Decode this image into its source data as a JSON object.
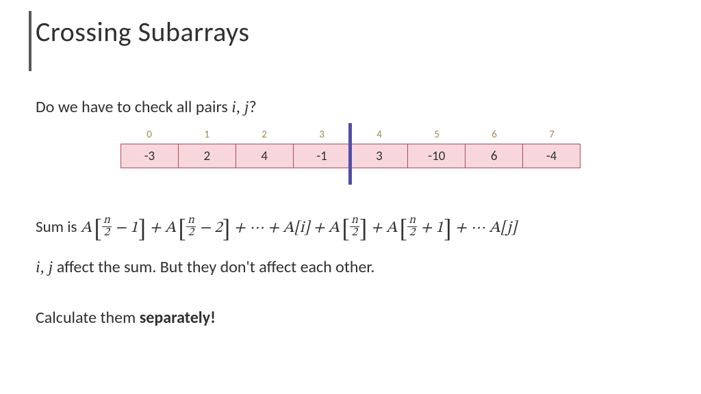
{
  "title": "Crossing Subarrays",
  "question_prefix": "Do we have to check all pairs ",
  "question_vars": "i, j",
  "question_suffix": "?",
  "array": {
    "indices": [
      "0",
      "1",
      "2",
      "3",
      "4",
      "5",
      "6",
      "7"
    ],
    "values": [
      "-3",
      "2",
      "4",
      "-1",
      "3",
      "-10",
      "6",
      "-4"
    ],
    "cell_bg": "#f7d7db",
    "cell_border": "#a94b5a",
    "index_color": "#9c8a4e",
    "divider_color": "#514ea8",
    "divider_after_index": 4
  },
  "formula": {
    "lead": "Sum is ",
    "A": "A",
    "n": "n",
    "two": "2",
    "m1": " − 1",
    "m2": " − 2",
    "p1": " + 1",
    "i": "i",
    "j": "j",
    "plus": " + ",
    "dots": " ⋯ "
  },
  "line2_vars": "i, j",
  "line2_text": " affect the sum. But they don't affect each other.",
  "line3_a": "Calculate them ",
  "line3_b": "separately!",
  "colors": {
    "title_bar": "#595959",
    "text": "#303030",
    "background": "#ffffff"
  }
}
